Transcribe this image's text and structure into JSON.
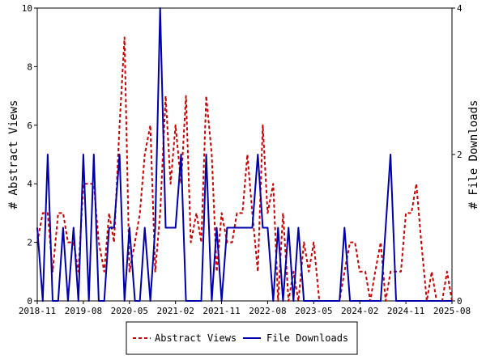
{
  "chart_data": {
    "type": "line",
    "ylabel_left": "# Abstract Views",
    "ylabel_right": "# File Downloads",
    "ylim_left": [
      0,
      10
    ],
    "ylim_right": [
      0,
      4
    ],
    "y_ticks_left": [
      "0",
      "2",
      "4",
      "6",
      "8",
      "10"
    ],
    "y_ticks_right": [
      "0",
      "2",
      "4"
    ],
    "x_tick_labels": [
      "2018-11",
      "2019-08",
      "2020-05",
      "2021-02",
      "2021-11",
      "2022-08",
      "2023-05",
      "2024-02",
      "2024-11",
      "2025-08"
    ],
    "grid": false,
    "legend_position": "bottom-center",
    "series": [
      {
        "name": "Abstract Views",
        "axis": "left",
        "color": "#cc0000",
        "style": "dashed",
        "points": [
          [
            2018.83,
            2
          ],
          [
            2018.92,
            3
          ],
          [
            2019.0,
            3
          ],
          [
            2019.08,
            1
          ],
          [
            2019.17,
            3
          ],
          [
            2019.25,
            3
          ],
          [
            2019.33,
            2
          ],
          [
            2019.42,
            2
          ],
          [
            2019.5,
            1
          ],
          [
            2019.58,
            4
          ],
          [
            2019.67,
            4
          ],
          [
            2019.75,
            4
          ],
          [
            2019.83,
            2
          ],
          [
            2019.92,
            1
          ],
          [
            2020.0,
            3
          ],
          [
            2020.08,
            2
          ],
          [
            2020.17,
            6
          ],
          [
            2020.25,
            9
          ],
          [
            2020.33,
            1
          ],
          [
            2020.42,
            2
          ],
          [
            2020.5,
            3
          ],
          [
            2020.58,
            5
          ],
          [
            2020.67,
            6
          ],
          [
            2020.75,
            1
          ],
          [
            2020.83,
            3
          ],
          [
            2020.92,
            7
          ],
          [
            2021.0,
            4
          ],
          [
            2021.08,
            6
          ],
          [
            2021.17,
            4
          ],
          [
            2021.25,
            7
          ],
          [
            2021.33,
            2
          ],
          [
            2021.42,
            3
          ],
          [
            2021.5,
            2
          ],
          [
            2021.58,
            7
          ],
          [
            2021.67,
            5
          ],
          [
            2021.75,
            1
          ],
          [
            2021.83,
            3
          ],
          [
            2021.92,
            2
          ],
          [
            2022.0,
            2
          ],
          [
            2022.08,
            3
          ],
          [
            2022.17,
            3
          ],
          [
            2022.25,
            5
          ],
          [
            2022.33,
            3
          ],
          [
            2022.42,
            1
          ],
          [
            2022.5,
            6
          ],
          [
            2022.58,
            3
          ],
          [
            2022.67,
            4
          ],
          [
            2022.75,
            0
          ],
          [
            2022.83,
            3
          ],
          [
            2022.92,
            0
          ],
          [
            2023.0,
            1
          ],
          [
            2023.08,
            0
          ],
          [
            2023.17,
            2
          ],
          [
            2023.25,
            1
          ],
          [
            2023.33,
            2
          ],
          [
            2023.42,
            0
          ],
          [
            2023.5,
            0
          ],
          [
            2023.58,
            0
          ],
          [
            2023.67,
            0
          ],
          [
            2023.75,
            0
          ],
          [
            2023.83,
            1
          ],
          [
            2023.92,
            2
          ],
          [
            2024.0,
            2
          ],
          [
            2024.08,
            1
          ],
          [
            2024.17,
            1
          ],
          [
            2024.25,
            0
          ],
          [
            2024.33,
            1
          ],
          [
            2024.42,
            2
          ],
          [
            2024.5,
            0
          ],
          [
            2024.58,
            1
          ],
          [
            2024.67,
            1
          ],
          [
            2024.75,
            1
          ],
          [
            2024.83,
            3
          ],
          [
            2024.92,
            3
          ],
          [
            2025.0,
            4
          ],
          [
            2025.08,
            2
          ],
          [
            2025.17,
            0
          ],
          [
            2025.25,
            1
          ],
          [
            2025.33,
            0
          ],
          [
            2025.42,
            0
          ],
          [
            2025.5,
            1
          ],
          [
            2025.58,
            0
          ]
        ]
      },
      {
        "name": "File Downloads",
        "axis": "right",
        "color": "#0000aa",
        "style": "solid",
        "points": [
          [
            2018.83,
            1
          ],
          [
            2018.92,
            0
          ],
          [
            2019.0,
            2
          ],
          [
            2019.08,
            0
          ],
          [
            2019.17,
            0
          ],
          [
            2019.25,
            1
          ],
          [
            2019.33,
            0
          ],
          [
            2019.42,
            1
          ],
          [
            2019.5,
            0
          ],
          [
            2019.58,
            2
          ],
          [
            2019.67,
            0
          ],
          [
            2019.75,
            2
          ],
          [
            2019.83,
            0
          ],
          [
            2019.92,
            0
          ],
          [
            2020.0,
            1
          ],
          [
            2020.08,
            1
          ],
          [
            2020.17,
            2
          ],
          [
            2020.25,
            0
          ],
          [
            2020.33,
            1
          ],
          [
            2020.42,
            0
          ],
          [
            2020.5,
            0
          ],
          [
            2020.58,
            1
          ],
          [
            2020.67,
            0
          ],
          [
            2020.75,
            1
          ],
          [
            2020.83,
            4
          ],
          [
            2020.92,
            1
          ],
          [
            2021.0,
            1
          ],
          [
            2021.08,
            1
          ],
          [
            2021.17,
            2
          ],
          [
            2021.25,
            0
          ],
          [
            2021.33,
            0
          ],
          [
            2021.42,
            0
          ],
          [
            2021.5,
            0
          ],
          [
            2021.58,
            2
          ],
          [
            2021.67,
            0
          ],
          [
            2021.75,
            1
          ],
          [
            2021.83,
            0
          ],
          [
            2021.92,
            1
          ],
          [
            2022.0,
            1
          ],
          [
            2022.08,
            1
          ],
          [
            2022.17,
            1
          ],
          [
            2022.25,
            1
          ],
          [
            2022.33,
            1
          ],
          [
            2022.42,
            2
          ],
          [
            2022.5,
            1
          ],
          [
            2022.58,
            1
          ],
          [
            2022.67,
            0
          ],
          [
            2022.75,
            1
          ],
          [
            2022.83,
            0
          ],
          [
            2022.92,
            1
          ],
          [
            2023.0,
            0
          ],
          [
            2023.08,
            1
          ],
          [
            2023.17,
            0
          ],
          [
            2023.25,
            0
          ],
          [
            2023.33,
            0
          ],
          [
            2023.42,
            0
          ],
          [
            2023.5,
            0
          ],
          [
            2023.58,
            0
          ],
          [
            2023.67,
            0
          ],
          [
            2023.75,
            0
          ],
          [
            2023.83,
            1
          ],
          [
            2023.92,
            0
          ],
          [
            2024.0,
            0
          ],
          [
            2024.08,
            0
          ],
          [
            2024.17,
            0
          ],
          [
            2024.25,
            0
          ],
          [
            2024.33,
            0
          ],
          [
            2024.42,
            0
          ],
          [
            2024.5,
            1
          ],
          [
            2024.58,
            2
          ],
          [
            2024.67,
            0
          ],
          [
            2024.75,
            0
          ],
          [
            2024.83,
            0
          ],
          [
            2024.92,
            0
          ],
          [
            2025.0,
            0
          ],
          [
            2025.08,
            0
          ],
          [
            2025.17,
            0
          ],
          [
            2025.25,
            0
          ],
          [
            2025.33,
            0
          ],
          [
            2025.42,
            0
          ],
          [
            2025.5,
            0
          ],
          [
            2025.58,
            0
          ]
        ]
      }
    ]
  }
}
